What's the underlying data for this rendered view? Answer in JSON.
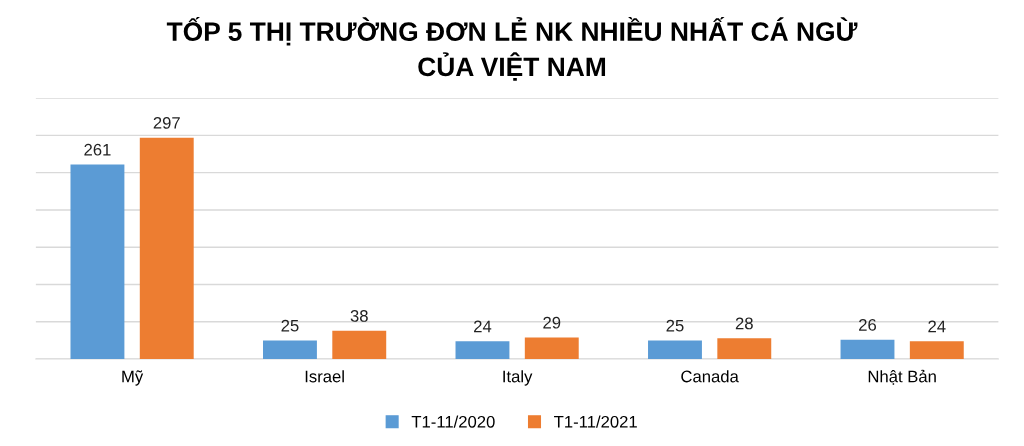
{
  "chart_data": {
    "type": "bar",
    "title": "TỐP 5 THỊ TRƯỜNG ĐƠN LẺ NK NHIỀU NHẤT CÁ NGỪ\nCỦA VIỆT NAM",
    "categories": [
      "Mỹ",
      "Israel",
      "Italy",
      "Canada",
      "Nhật Bản"
    ],
    "series": [
      {
        "name": "T1-11/2020",
        "color": "#5b9bd5",
        "values": [
          261,
          25,
          24,
          25,
          26
        ]
      },
      {
        "name": "T1-11/2021",
        "color": "#ed7d31",
        "values": [
          297,
          38,
          29,
          28,
          24
        ]
      }
    ],
    "ylim": [
      0,
      350
    ],
    "yticks": [
      {
        "value": 0,
        "label": null
      },
      {
        "value": 50,
        "label": null
      },
      {
        "value": 100,
        "label": null
      },
      {
        "value": 150,
        "label": null
      },
      {
        "value": 200,
        "label": null
      },
      {
        "value": 250,
        "label": null
      },
      {
        "value": 300,
        "label": null
      },
      {
        "value": 350,
        "label": null
      }
    ],
    "tick_labels": "x",
    "grid": "y",
    "legend": "bottom",
    "data_labels": true
  }
}
